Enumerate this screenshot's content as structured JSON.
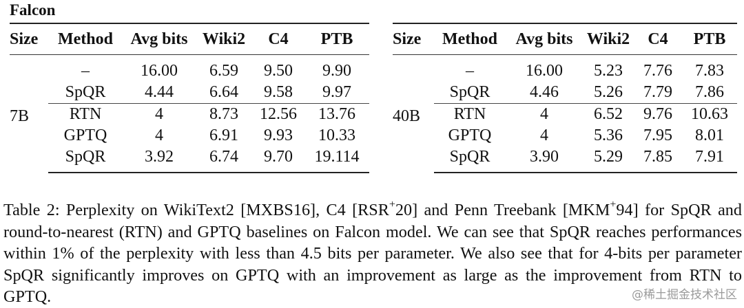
{
  "label": "Falcon",
  "headers": [
    "Size",
    "Method",
    "Avg bits",
    "Wiki2",
    "C4",
    "PTB"
  ],
  "left": {
    "size": "7B",
    "rows": [
      {
        "method": "–",
        "bits": "16.00",
        "wiki2": "6.59",
        "c4": "9.50",
        "ptb": "9.90"
      },
      {
        "method": "SpQR",
        "bits": "4.44",
        "wiki2": "6.64",
        "c4": "9.58",
        "ptb": "9.97"
      },
      {
        "method": "RTN",
        "bits": "4",
        "wiki2": "8.73",
        "c4": "12.56",
        "ptb": "13.76"
      },
      {
        "method": "GPTQ",
        "bits": "4",
        "wiki2": "6.91",
        "c4": "9.93",
        "ptb": "10.33"
      },
      {
        "method": "SpQR",
        "bits": "3.92",
        "wiki2": "6.74",
        "c4": "9.70",
        "ptb": "19.114"
      }
    ]
  },
  "right": {
    "size": "40B",
    "rows": [
      {
        "method": "–",
        "bits": "16.00",
        "wiki2": "5.23",
        "c4": "7.76",
        "ptb": "7.83"
      },
      {
        "method": "SpQR",
        "bits": "4.46",
        "wiki2": "5.26",
        "c4": "7.79",
        "ptb": "7.86"
      },
      {
        "method": "RTN",
        "bits": "4",
        "wiki2": "6.52",
        "c4": "9.76",
        "ptb": "10.63"
      },
      {
        "method": "GPTQ",
        "bits": "4",
        "wiki2": "5.36",
        "c4": "7.95",
        "ptb": "8.01"
      },
      {
        "method": "SpQR",
        "bits": "3.90",
        "wiki2": "5.29",
        "c4": "7.85",
        "ptb": "7.91"
      }
    ]
  },
  "caption": {
    "prefix": "Table 2: Perplexity on WikiText2 [MXBS16], C4 [RSR",
    "sup1": "+",
    "mid1": "20] and Penn Treebank [MKM",
    "sup2": "+",
    "rest": "94] for SpQR and round-to-nearest (RTN) and GPTQ baselines on Falcon model. We can see that SpQR reaches performances within 1% of the perplexity with less than 4.5 bits per parameter. We also see that for 4-bits per parameter SpQR significantly improves on GPTQ with an improvement as large as the improvement from RTN to GPTQ."
  },
  "watermark": "@稀土掘金技术社区"
}
